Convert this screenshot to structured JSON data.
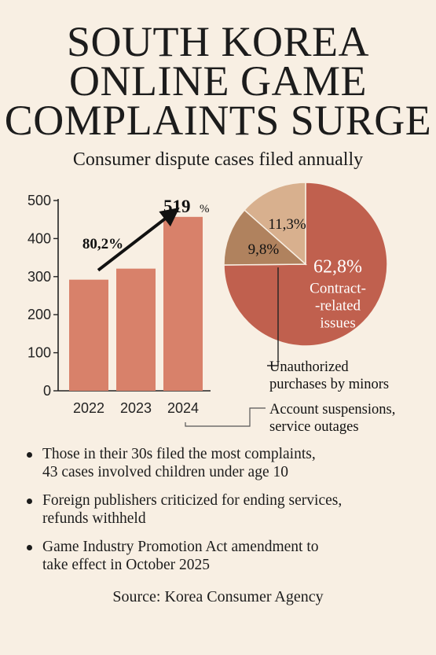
{
  "title_lines": [
    "SOUTH KOREA",
    "ONLINE GAME",
    "COMPLAINTS SURGE"
  ],
  "subtitle": "Consumer dispute cases filed annually",
  "chart_data": [
    {
      "type": "bar",
      "categories": [
        "2022",
        "2023",
        "2024"
      ],
      "values": [
        292,
        321,
        457
      ],
      "ylim": [
        0,
        500
      ],
      "yticks": [
        0,
        100,
        200,
        300,
        400,
        500
      ],
      "grid": false,
      "annotations": [
        {
          "text": "80,2%",
          "kind": "arrow-label"
        },
        {
          "text": "519",
          "suffix": "%",
          "kind": "top-label"
        }
      ],
      "bar_color": "#d8816a",
      "arrow_color": "#111111"
    },
    {
      "type": "pie",
      "slices": [
        {
          "value": 62.8,
          "label": "62,8%",
          "name": "Contract-\n-related\nissues",
          "color": "#c0604e"
        },
        {
          "value": 9.8,
          "label": "9,8%",
          "name": "",
          "color": "#b0825e"
        },
        {
          "value": 11.3,
          "label": "11,3%",
          "name": "",
          "color": "#d8b08e"
        }
      ],
      "callouts": [
        {
          "text": "Unauthorized\npurchases by minors"
        },
        {
          "text": "Account suspensions,\nservice outages"
        }
      ]
    }
  ],
  "bullets": [
    "Those in their 30s filed the most complaints,\n43 cases involved children under age 10",
    "Foreign publishers criticized for ending services,\nrefunds withheld",
    "Game Industry Promotion Act amendment to\ntake effect in October 2025"
  ],
  "source": "Source: Korea Consumer Agency"
}
